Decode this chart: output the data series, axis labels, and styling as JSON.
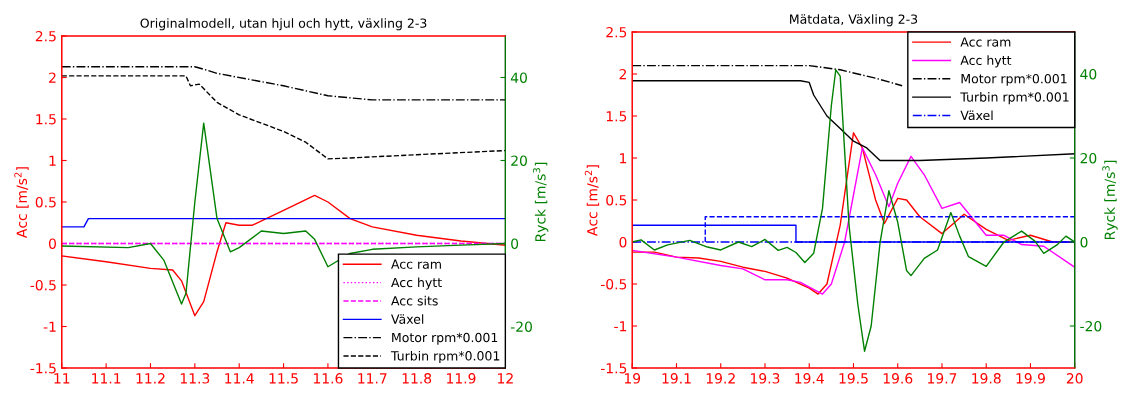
{
  "chart_data": [
    {
      "type": "line",
      "title": "Originalmodell, utan hjul och hytt, växling 2-3",
      "ylabel": "Acc [m/s$^{2}$]",
      "y2label": "Ryck [m/s$^{3}$]",
      "xlim": [
        11,
        12
      ],
      "xticks": [
        11,
        11.1,
        11.2,
        11.3,
        11.4,
        11.5,
        11.6,
        11.7,
        11.8,
        11.9,
        12
      ],
      "ylim": [
        -1.5,
        2.5
      ],
      "yticks": [
        -1.5,
        -1,
        -0.5,
        0,
        0.5,
        1,
        1.5,
        2,
        2.5
      ],
      "y2lim": [
        -30,
        50
      ],
      "y2ticks": [
        -20,
        0,
        20,
        40
      ],
      "grid": false,
      "legend": "bottom right",
      "marker": "none",
      "series": [
        {
          "name": "Acc ram",
          "color": "#ff0000",
          "line_style": "solid",
          "x": [
            11.0,
            11.1,
            11.2,
            11.25,
            11.27,
            11.3,
            11.32,
            11.35,
            11.37,
            11.4,
            11.43,
            11.5,
            11.57,
            11.6,
            11.65,
            11.7,
            11.8,
            11.9,
            12.0
          ],
          "values": [
            -0.15,
            -0.22,
            -0.3,
            -0.32,
            -0.45,
            -0.87,
            -0.7,
            -0.1,
            0.25,
            0.22,
            0.22,
            0.4,
            0.58,
            0.5,
            0.3,
            0.2,
            0.1,
            0.03,
            -0.02
          ]
        },
        {
          "name": "Acc hytt",
          "color": "#ff00ff",
          "line_style": "dotted",
          "x": [
            11.0,
            12.0
          ],
          "values": [
            0,
            0
          ]
        },
        {
          "name": "Acc sits",
          "color": "#ff00ff",
          "line_style": "dashed",
          "x": [
            11.0,
            12.0
          ],
          "values": [
            0,
            0
          ]
        },
        {
          "name": "Växel",
          "color": "#0000ff",
          "line_style": "solid",
          "x": [
            11.0,
            11.05,
            11.06,
            12.0
          ],
          "values": [
            0.2,
            0.2,
            0.3,
            0.3
          ]
        },
        {
          "name": "Motor rpm*0.001",
          "color": "#000000",
          "line_style": "dashdot",
          "x": [
            11.0,
            11.3,
            11.32,
            11.35,
            11.5,
            11.6,
            11.7,
            12.0
          ],
          "values": [
            2.13,
            2.13,
            2.1,
            2.05,
            1.9,
            1.78,
            1.73,
            1.73
          ]
        },
        {
          "name": "Turbin rpm*0.001",
          "color": "#000000",
          "line_style": "dashed",
          "x": [
            11.0,
            11.28,
            11.29,
            11.31,
            11.35,
            11.4,
            11.5,
            11.55,
            11.6,
            11.65,
            11.8,
            12.0
          ],
          "values": [
            2.02,
            2.02,
            1.9,
            1.92,
            1.7,
            1.55,
            1.35,
            1.22,
            1.02,
            1.03,
            1.07,
            1.12
          ]
        },
        {
          "color": "#008000",
          "line_style": "solid",
          "axis": "y2",
          "x": [
            11.0,
            11.15,
            11.2,
            11.23,
            11.27,
            11.28,
            11.3,
            11.32,
            11.35,
            11.38,
            11.4,
            11.45,
            11.5,
            11.55,
            11.57,
            11.6,
            11.65,
            11.7,
            11.8,
            11.9,
            12.0
          ],
          "values": [
            -0.6,
            -1,
            0,
            -4,
            -14.6,
            -12,
            10,
            29,
            6,
            -2,
            -1,
            3,
            2.4,
            3,
            1,
            -5.6,
            -2.4,
            -1.4,
            -0.8,
            -0.4,
            0
          ]
        }
      ]
    },
    {
      "type": "line",
      "title": "Mätdata, Växling 2-3",
      "ylabel": "Acc [m/s$^{2}$]",
      "y2label": "Ryck [m/s$^{3}$]",
      "xlim": [
        19,
        20
      ],
      "xticks": [
        19,
        19.1,
        19.2,
        19.3,
        19.4,
        19.5,
        19.6,
        19.7,
        19.8,
        19.9,
        20
      ],
      "ylim": [
        -1.5,
        2.5
      ],
      "yticks": [
        -1.5,
        -1,
        -0.5,
        0,
        0.5,
        1,
        1.5,
        2,
        2.5
      ],
      "y2lim": [
        -30,
        50
      ],
      "y2ticks": [
        -20,
        0,
        20,
        40
      ],
      "grid": false,
      "legend": "top right",
      "marker": "none",
      "series": [
        {
          "name": "Acc ram",
          "color": "#ff0000",
          "line_style": "solid",
          "x": [
            19.0,
            19.05,
            19.1,
            19.15,
            19.2,
            19.25,
            19.3,
            19.35,
            19.4,
            19.42,
            19.44,
            19.47,
            19.5,
            19.52,
            19.55,
            19.57,
            19.6,
            19.62,
            19.65,
            19.7,
            19.75,
            19.8,
            19.85,
            19.9,
            19.95,
            20.0
          ],
          "values": [
            -0.12,
            -0.12,
            -0.18,
            -0.19,
            -0.23,
            -0.3,
            -0.35,
            -0.43,
            -0.55,
            -0.62,
            -0.5,
            0.2,
            1.3,
            1.12,
            0.5,
            0.22,
            0.52,
            0.5,
            0.3,
            0.1,
            0.33,
            0.15,
            0.02,
            0.08,
            0.0,
            0.0
          ]
        },
        {
          "name": "Acc hytt",
          "color": "#ff00ff",
          "line_style": "solid",
          "x": [
            19.0,
            19.1,
            19.2,
            19.25,
            19.3,
            19.35,
            19.38,
            19.43,
            19.45,
            19.48,
            19.52,
            19.55,
            19.58,
            19.6,
            19.63,
            19.66,
            19.7,
            19.74,
            19.8,
            19.84,
            19.88,
            19.93,
            20.0
          ],
          "values": [
            -0.1,
            -0.18,
            -0.28,
            -0.32,
            -0.45,
            -0.45,
            -0.48,
            -0.62,
            -0.5,
            0.0,
            1.12,
            0.8,
            0.42,
            0.7,
            1.02,
            0.8,
            0.4,
            0.47,
            0.08,
            0.08,
            -0.03,
            -0.05,
            -0.3
          ]
        },
        {
          "name": "Motor rpm*0.001",
          "color": "#000000",
          "line_style": "dashdot",
          "x": [
            19.0,
            19.4,
            19.47,
            19.55,
            19.61
          ],
          "values": [
            2.1,
            2.1,
            2.05,
            1.95,
            1.86
          ]
        },
        {
          "name": "Turbin rpm*0.001",
          "color": "#000000",
          "line_style": "solid",
          "x": [
            19.0,
            19.38,
            19.4,
            19.41,
            19.44,
            19.47,
            19.5,
            19.53,
            19.56,
            19.65,
            19.8,
            20.0
          ],
          "values": [
            1.92,
            1.92,
            1.9,
            1.75,
            1.5,
            1.35,
            1.2,
            1.12,
            0.97,
            0.97,
            1.0,
            1.05
          ]
        },
        {
          "name": "Växel",
          "color": "#0000ff",
          "line_style": "dashdot",
          "x": [
            19.0,
            20.0
          ],
          "values": [
            0,
            0
          ]
        },
        {
          "color": "#0000ff",
          "line_style": "solid",
          "x": [
            19.0,
            19.37,
            19.37,
            20.0
          ],
          "values": [
            0.2,
            0.2,
            0,
            0
          ]
        },
        {
          "color": "#0000ff",
          "line_style": "dashed",
          "x": [
            19.165,
            19.165,
            20.0
          ],
          "values": [
            0,
            0.3,
            0.3
          ]
        },
        {
          "color": "#008000",
          "line_style": "solid",
          "axis": "y2",
          "x": [
            19.0,
            19.02,
            19.05,
            19.08,
            19.13,
            19.17,
            19.2,
            19.24,
            19.27,
            19.3,
            19.33,
            19.35,
            19.37,
            19.39,
            19.41,
            19.43,
            19.45,
            19.46,
            19.47,
            19.49,
            19.51,
            19.525,
            19.54,
            19.56,
            19.58,
            19.6,
            19.62,
            19.63,
            19.66,
            19.69,
            19.72,
            19.74,
            19.76,
            19.8,
            19.84,
            19.88,
            19.91,
            19.93,
            19.96,
            19.98,
            20.0
          ],
          "values": [
            0,
            0.5,
            -1.9,
            -0.7,
            0.4,
            -1.2,
            -1.9,
            0,
            -1.1,
            0.6,
            -2,
            -1.3,
            -2.5,
            -4.9,
            -2.7,
            8,
            32.5,
            41,
            39.5,
            3.9,
            -15,
            -26,
            -20,
            -0.2,
            12.2,
            4.7,
            -6.8,
            -8,
            -3.9,
            -1.9,
            7,
            1.4,
            -3.5,
            -5.8,
            0,
            2.6,
            0.2,
            -2.7,
            -0.7,
            1.4,
            0
          ]
        }
      ]
    }
  ]
}
